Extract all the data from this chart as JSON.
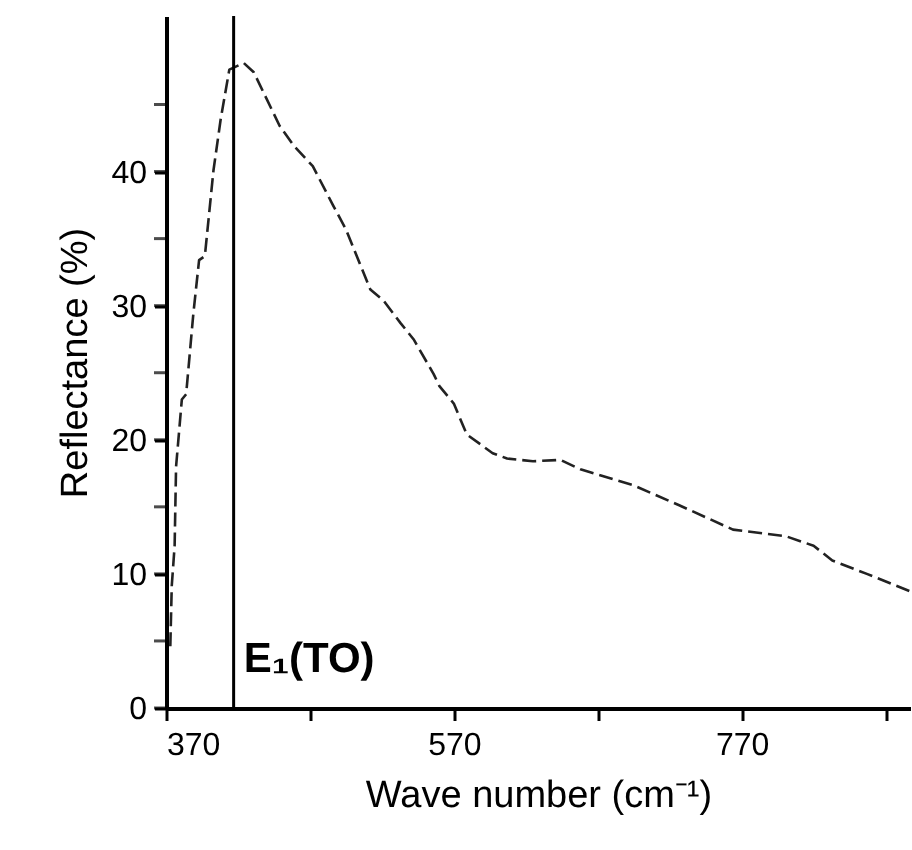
{
  "chart_data": {
    "type": "line",
    "xlabel": "Wave number (cm⁻¹)",
    "ylabel": "Reflectance (%)",
    "x": [
      373,
      374,
      376,
      377,
      381,
      384,
      389,
      393,
      397,
      400,
      403,
      408,
      414,
      424,
      431,
      449,
      459,
      472,
      486,
      495,
      512,
      521,
      533,
      542,
      556,
      560,
      570,
      579,
      597,
      607,
      625,
      644,
      658,
      695,
      727,
      764,
      801,
      820,
      833,
      857,
      887
    ],
    "series": [
      {
        "color": "#222222",
        "values": [
          4.6,
          9.1,
          12.1,
          18,
          23,
          23.4,
          29.4,
          33.4,
          33.7,
          36.9,
          40.1,
          43.9,
          47.6,
          48.1,
          47.4,
          43.4,
          41.9,
          40.4,
          37.5,
          35.7,
          31.2,
          30.4,
          28.7,
          27.5,
          24.9,
          24,
          22.7,
          20.4,
          19,
          18.6,
          18.4,
          18.5,
          17.8,
          16.6,
          15.1,
          13.3,
          12.8,
          12.1,
          11,
          10,
          8.7
        ]
      }
    ],
    "xlim": [
      370,
      887
    ],
    "ylim": [
      0,
      51.6
    ],
    "xticks": [
      370,
      {
        "value": 470,
        "label": null
      },
      570,
      {
        "value": 670,
        "label": null
      },
      770,
      {
        "value": 870,
        "label": null
      }
    ],
    "yticks": [
      0,
      {
        "value": 5,
        "label": null
      },
      10,
      {
        "value": 15,
        "label": null
      },
      20,
      {
        "value": 25,
        "label": null
      },
      30,
      {
        "value": 35,
        "label": null
      },
      40,
      {
        "value": 45,
        "label": null
      }
    ],
    "ref_lines": [
      {
        "axis": "x",
        "value": 417,
        "label": "E₁(TO)",
        "color": "#000000"
      }
    ],
    "line_style": "dashed",
    "grid": false,
    "marker": "none"
  }
}
